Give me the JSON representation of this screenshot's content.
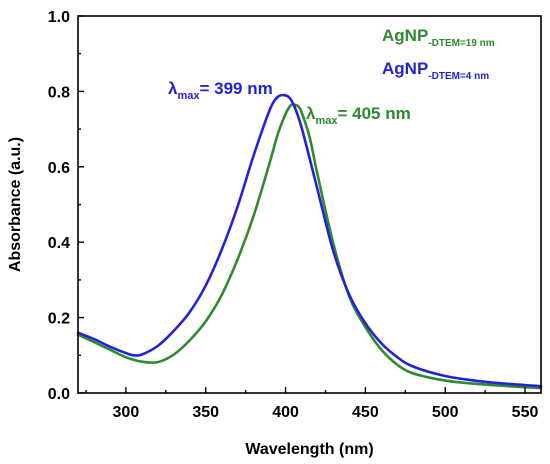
{
  "chart_data": {
    "type": "line",
    "title": "",
    "xlabel": "Wavelength (nm)",
    "ylabel": "Absorbance (a.u.)",
    "xlim": [
      270,
      560
    ],
    "ylim": [
      0.0,
      1.0
    ],
    "xticks": [
      300,
      350,
      400,
      450,
      500,
      550
    ],
    "yticks": [
      0.0,
      0.2,
      0.4,
      0.6,
      0.8,
      1.0
    ],
    "ytick_labels": [
      "0.0",
      "0.2",
      "0.4",
      "0.6",
      "0.8",
      "1.0"
    ],
    "grid": false,
    "legend_position": "top-right",
    "series": [
      {
        "name_main": "AgNP",
        "name_sub": "-DTEM=19 nm",
        "color": "#2e8b2e",
        "x": [
          270,
          280,
          290,
          300,
          310,
          320,
          330,
          340,
          350,
          360,
          370,
          380,
          390,
          395,
          400,
          403,
          405,
          408,
          410,
          415,
          420,
          430,
          440,
          450,
          460,
          470,
          480,
          500,
          520,
          540,
          560
        ],
        "y": [
          0.155,
          0.135,
          0.115,
          0.095,
          0.083,
          0.082,
          0.102,
          0.14,
          0.19,
          0.26,
          0.355,
          0.47,
          0.61,
          0.685,
          0.74,
          0.762,
          0.765,
          0.76,
          0.745,
          0.68,
          0.58,
          0.395,
          0.255,
          0.175,
          0.115,
          0.075,
          0.052,
          0.033,
          0.024,
          0.018,
          0.013
        ]
      },
      {
        "name_main": "AgNP",
        "name_sub": "-DTEM=4 nm",
        "color": "#2323d6",
        "x": [
          270,
          280,
          290,
          300,
          305,
          310,
          320,
          330,
          340,
          350,
          360,
          370,
          380,
          390,
          395,
          399,
          402,
          405,
          410,
          420,
          430,
          440,
          450,
          460,
          470,
          480,
          500,
          520,
          540,
          560
        ],
        "y": [
          0.16,
          0.143,
          0.123,
          0.106,
          0.1,
          0.102,
          0.125,
          0.165,
          0.215,
          0.285,
          0.38,
          0.495,
          0.63,
          0.75,
          0.785,
          0.79,
          0.785,
          0.765,
          0.705,
          0.54,
          0.375,
          0.26,
          0.185,
          0.132,
          0.095,
          0.07,
          0.045,
          0.032,
          0.024,
          0.018
        ]
      }
    ],
    "annotations": [
      {
        "symbol": "λ",
        "sub": "max",
        "text": "= 399 nm",
        "color": "#2323d6",
        "x": 399,
        "y": 0.79
      },
      {
        "symbol": "λ",
        "sub": "max",
        "text": "= 405 nm",
        "color": "#2e8b2e",
        "x": 405,
        "y": 0.765
      }
    ]
  }
}
